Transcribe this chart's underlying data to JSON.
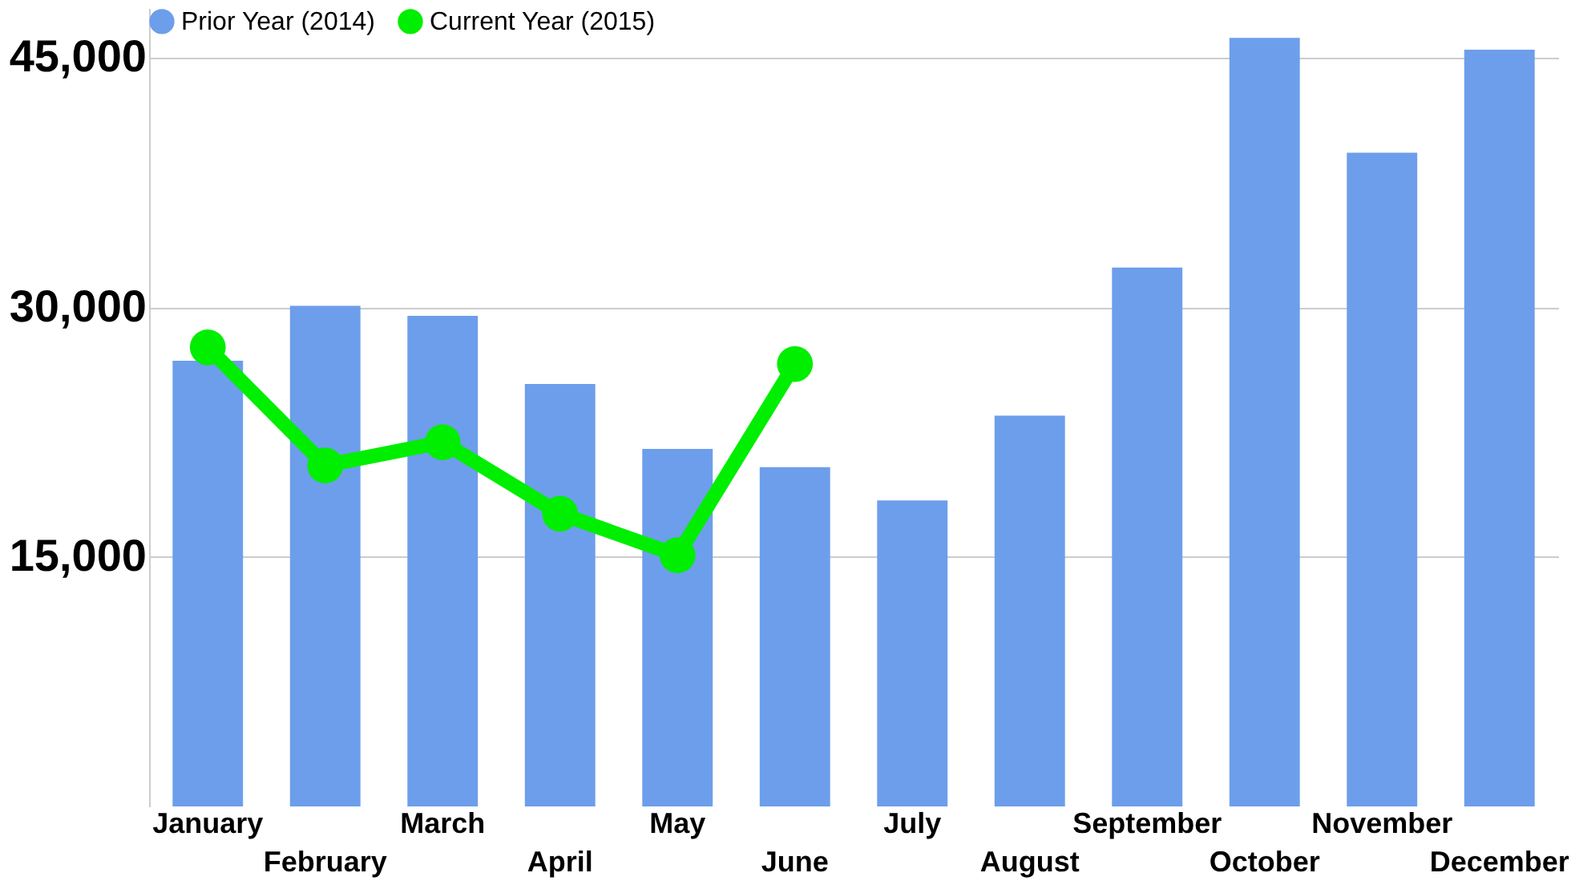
{
  "chart_data": {
    "type": "bar",
    "categories": [
      "January",
      "February",
      "March",
      "April",
      "May",
      "June",
      "July",
      "August",
      "September",
      "October",
      "November",
      "December"
    ],
    "series": [
      {
        "name": "Prior Year (2014)",
        "color": "#6d9eeb",
        "values": [
          26800,
          30100,
          29500,
          25400,
          21500,
          20400,
          18400,
          23500,
          32400,
          46200,
          39300,
          45500
        ]
      },
      {
        "name": "Current Year (2015)",
        "type": "line",
        "color": "#00ee00",
        "values": [
          27600,
          20500,
          21900,
          17600,
          15100,
          26600,
          null,
          null,
          null,
          null,
          null,
          null
        ]
      }
    ],
    "ylim": [
      0,
      48000
    ],
    "yticks": [
      {
        "value": 15000,
        "label": "15,000"
      },
      {
        "value": 30000,
        "label": "30,000"
      },
      {
        "value": 45000,
        "label": "45,000"
      }
    ],
    "grid": "y",
    "legend": "top left",
    "marker": "circle"
  }
}
